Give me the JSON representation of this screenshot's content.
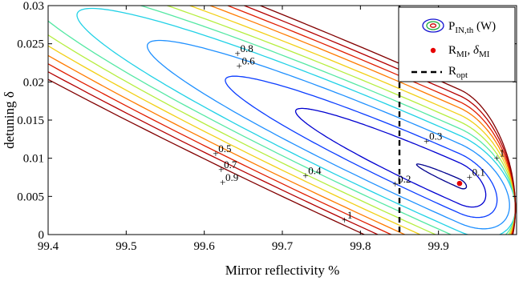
{
  "chart_data": {
    "type": "contour",
    "xlabel": "Mirror reflectivity %",
    "ylabel": "detuning δ",
    "xlim": [
      99.4,
      100.0
    ],
    "ylim": [
      0,
      0.03
    ],
    "xticks": [
      "99.4",
      "99.5",
      "99.6",
      "99.7",
      "99.8",
      "99.9"
    ],
    "yticks": [
      "0",
      "0.005",
      "0.01",
      "0.015",
      "0.02",
      "0.025",
      "0.03"
    ],
    "colormap": "jet",
    "grid": false,
    "legend_position": "top-right",
    "legend": {
      "contour_label": "P",
      "contour_sub": "IN,th",
      "contour_unit": " (W)",
      "point_label": "R",
      "point_sub": "MI",
      "point_sep": ", ",
      "point_label2": "δ",
      "point_sub2": "MI",
      "line_label": "R",
      "line_sub": "opt"
    },
    "contours": [
      {
        "level": 0.1,
        "color": "#00008f",
        "width": 0.00058,
        "rx": 0.055
      },
      {
        "level": 0.2,
        "color": "#0000d0",
        "width": 0.0027,
        "rx": 0.21
      },
      {
        "level": 0.3,
        "color": "#0b3dff",
        "width": 0.0039,
        "rx": 0.3
      },
      {
        "level": 0.4,
        "color": "#1f90ff",
        "width": 0.0052,
        "rx": 0.4
      },
      {
        "level": 0.5,
        "color": "#21d1e6",
        "width": 0.0063,
        "rx": 0.49
      },
      {
        "level": 0.6,
        "color": "#55e8a4",
        "width": 0.0072,
        "rx": 0.56
      },
      {
        "level": 0.7,
        "color": "#b6ee3f",
        "width": 0.0081,
        "rx": 0.62
      },
      {
        "level": 0.8,
        "color": "#f2d016",
        "width": 0.009,
        "rx": 0.68
      },
      {
        "level": 0.9,
        "color": "#ff7b00",
        "width": 0.0099,
        "rx": 0.74
      },
      {
        "level": 1.0,
        "color": "#e11e00",
        "width": 0.0107,
        "rx": 0.8
      },
      {
        "level": 1.1,
        "color": "#b40000",
        "width": 0.0115,
        "rx": 0.86
      },
      {
        "level": 1.2,
        "color": "#820000",
        "width": 0.0123,
        "rx": 0.92
      }
    ],
    "contour_labels": [
      {
        "text": "0.1",
        "x": 99.94,
        "y": 0.0075
      },
      {
        "text": "0.2",
        "x": 99.845,
        "y": 0.0066
      },
      {
        "text": "0.3",
        "x": 99.885,
        "y": 0.0122
      },
      {
        "text": "0.4",
        "x": 99.73,
        "y": 0.0077
      },
      {
        "text": "0.5",
        "x": 99.615,
        "y": 0.0106
      },
      {
        "text": "0.6",
        "x": 99.645,
        "y": 0.0221
      },
      {
        "text": "0.7",
        "x": 99.622,
        "y": 0.0085
      },
      {
        "text": "0.8",
        "x": 99.643,
        "y": 0.0237
      },
      {
        "text": "0.9",
        "x": 99.624,
        "y": 0.0068
      },
      {
        "text": "1",
        "x": 99.78,
        "y": 0.0019
      },
      {
        "text": "1",
        "x": 99.975,
        "y": 0.01
      }
    ],
    "point": {
      "x": 99.927,
      "y": 0.0067,
      "color": "#e60000"
    },
    "vline": {
      "x": 99.85
    }
  }
}
